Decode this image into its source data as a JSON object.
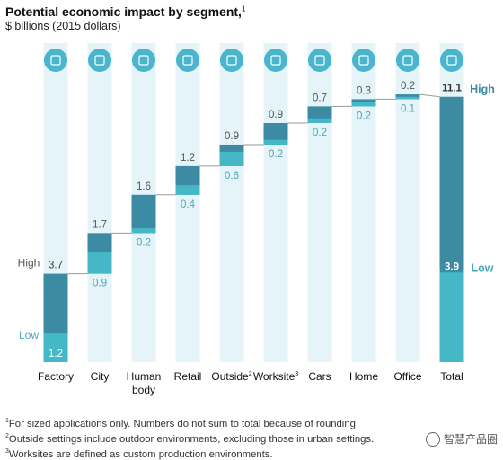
{
  "title": "Potential economic impact by segment,",
  "title_footnote": "1",
  "subtitle": "$ billions (2015 dollars)",
  "colors": {
    "pillar": "#e4f4f9",
    "high_segment": "#3d8aa3",
    "low_segment": "#45b8c8",
    "icon": "#4ab5cc",
    "connector": "#9a9a9a",
    "high_text": "#555555",
    "low_text": "#4aa7b8",
    "label_bg": "#ffffff"
  },
  "chart_data": {
    "type": "bar",
    "subtype": "waterfall",
    "title": "Potential economic impact by segment,",
    "ylabel": "$ billions (2015 dollars)",
    "categories": [
      "Factory",
      "City",
      "Human body",
      "Retail",
      "Outside",
      "Worksite",
      "Cars",
      "Home",
      "Office",
      "Total"
    ],
    "category_superscripts": [
      "",
      "",
      "",
      "",
      "2",
      "3",
      "",
      "",
      "",
      ""
    ],
    "series": [
      {
        "name": "High",
        "values": [
          3.7,
          1.7,
          1.6,
          1.2,
          0.9,
          0.9,
          0.7,
          0.3,
          0.2,
          11.1
        ]
      },
      {
        "name": "Low",
        "values": [
          1.2,
          0.9,
          0.2,
          0.4,
          0.6,
          0.2,
          0.2,
          0.2,
          0.1,
          3.9
        ]
      }
    ],
    "value_labels_high": [
      "3.7",
      "1.7",
      "1.6",
      "1.2",
      "0.9",
      "0.9",
      "0.7",
      "0.3",
      "0.2",
      "11.1"
    ],
    "value_labels_low": [
      "1.2",
      "0.9",
      "0.2",
      "0.4",
      "0.6",
      "0.2",
      "0.2",
      "0.2",
      "0.1",
      "3.9"
    ],
    "side_labels": {
      "high": "High",
      "low": "Low"
    },
    "icons": [
      "factory-icon",
      "city-icon",
      "human-body-icon",
      "retail-icon",
      "outside-icon",
      "worksite-icon",
      "cars-icon",
      "home-icon",
      "office-icon",
      "total-icon"
    ],
    "grid": false,
    "legend": "none"
  },
  "footnotes": [
    {
      "mark": "1",
      "text": "For sized applications only. Numbers do not sum to total because of rounding."
    },
    {
      "mark": "2",
      "text": "Outside settings include outdoor environments, excluding those in urban settings."
    },
    {
      "mark": "3",
      "text": "Worksites are defined as custom production environments."
    }
  ],
  "watermark": "智慧产品圈"
}
